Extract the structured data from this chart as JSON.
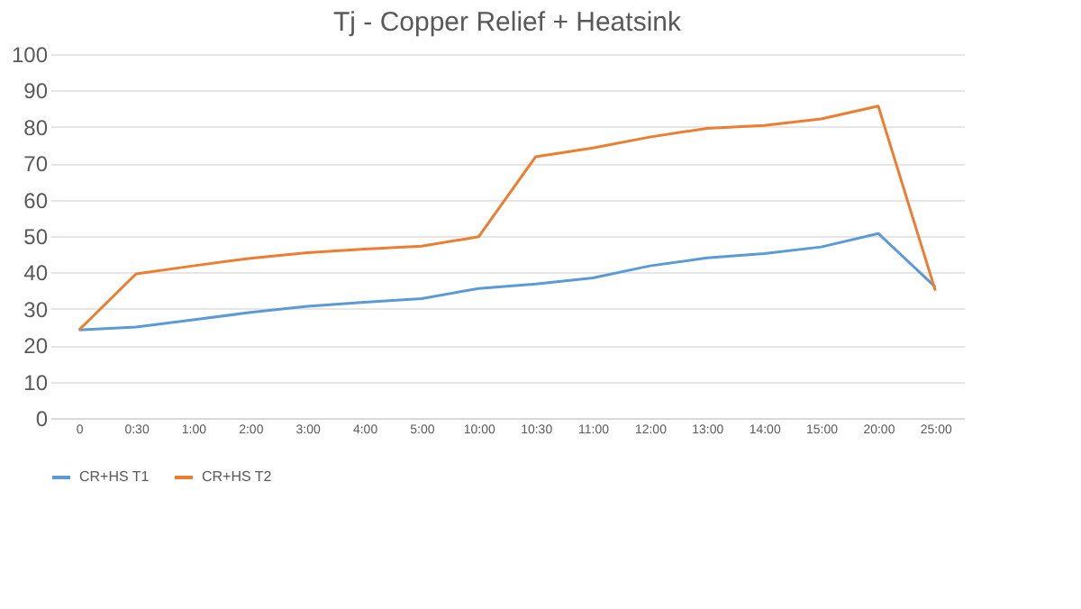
{
  "chart_data": {
    "type": "line",
    "title": "Tj - Copper Relief + Heatsink",
    "categories": [
      "0",
      "0:30",
      "1:00",
      "2:00",
      "3:00",
      "4:00",
      "5:00",
      "10:00",
      "10:30",
      "11:00",
      "12:00",
      "13:00",
      "14:00",
      "15:00",
      "20:00",
      "25:00"
    ],
    "series": [
      {
        "name": "CR+HS T1",
        "color": "#5b9bd5",
        "values": [
          24.2,
          25,
          27,
          29,
          30.7,
          31.8,
          32.8,
          35.6,
          36.8,
          38.5,
          41.8,
          44,
          45.2,
          47,
          50.7,
          36
        ]
      },
      {
        "name": "CR+HS T2",
        "color": "#ed7d31",
        "values": [
          24.2,
          39.6,
          41.8,
          43.9,
          45.4,
          46.4,
          47.2,
          49.8,
          71.8,
          74.2,
          77.2,
          79.6,
          80.4,
          82.2,
          85.7,
          35
        ]
      }
    ],
    "ylim": [
      0,
      100
    ],
    "yticks": [
      0,
      10,
      20,
      30,
      40,
      50,
      60,
      70,
      80,
      90,
      100
    ],
    "grid": "y",
    "legend": "bottom",
    "marker": "none",
    "line_style": "solid"
  }
}
